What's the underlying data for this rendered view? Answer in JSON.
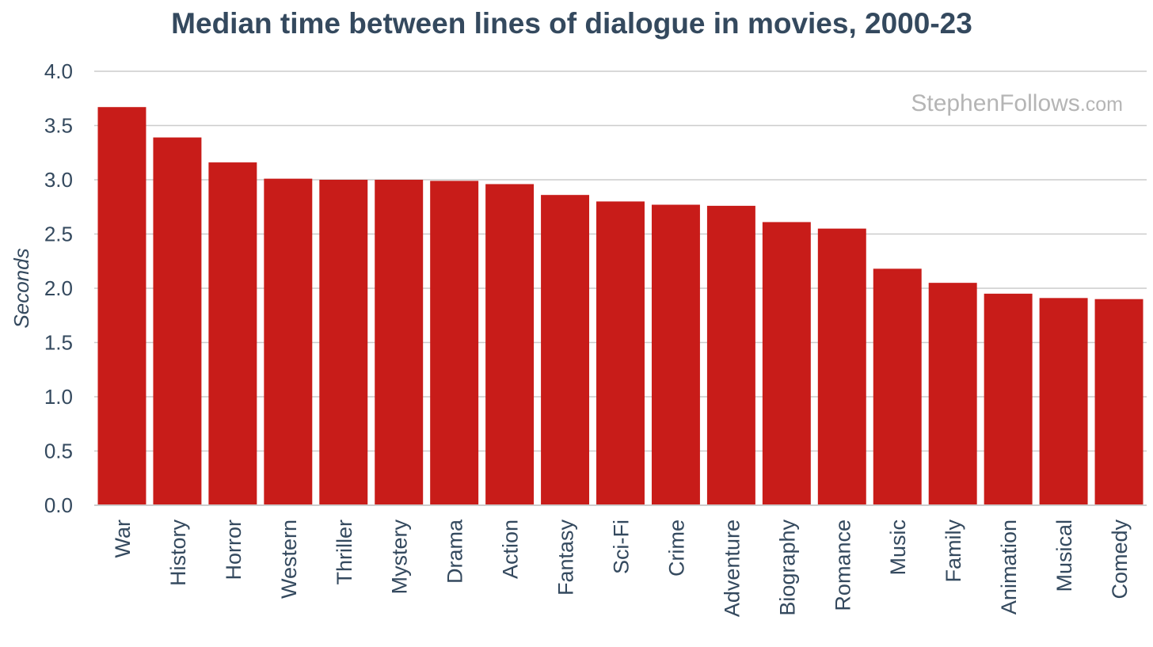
{
  "chart_data": {
    "type": "bar",
    "title": "Median time between lines of dialogue in movies, 2000-23",
    "xlabel": "",
    "ylabel": "Seconds",
    "ylim": [
      0,
      4.0
    ],
    "yticks": [
      "0.0",
      "0.5",
      "1.0",
      "1.5",
      "2.0",
      "2.5",
      "3.0",
      "3.5",
      "4.0"
    ],
    "categories": [
      "War",
      "History",
      "Horror",
      "Western",
      "Thriller",
      "Mystery",
      "Drama",
      "Action",
      "Fantasy",
      "Sci-Fi",
      "Crime",
      "Adventure",
      "Biography",
      "Romance",
      "Music",
      "Family",
      "Animation",
      "Musical",
      "Comedy"
    ],
    "values": [
      3.67,
      3.39,
      3.16,
      3.01,
      3.0,
      3.0,
      2.99,
      2.96,
      2.86,
      2.8,
      2.77,
      2.76,
      2.61,
      2.55,
      2.18,
      2.05,
      1.95,
      1.91,
      1.9
    ],
    "grid": true,
    "bar_color": "#c81c19",
    "watermark": {
      "main": "StephenFollows",
      "suffix": ".com"
    }
  }
}
